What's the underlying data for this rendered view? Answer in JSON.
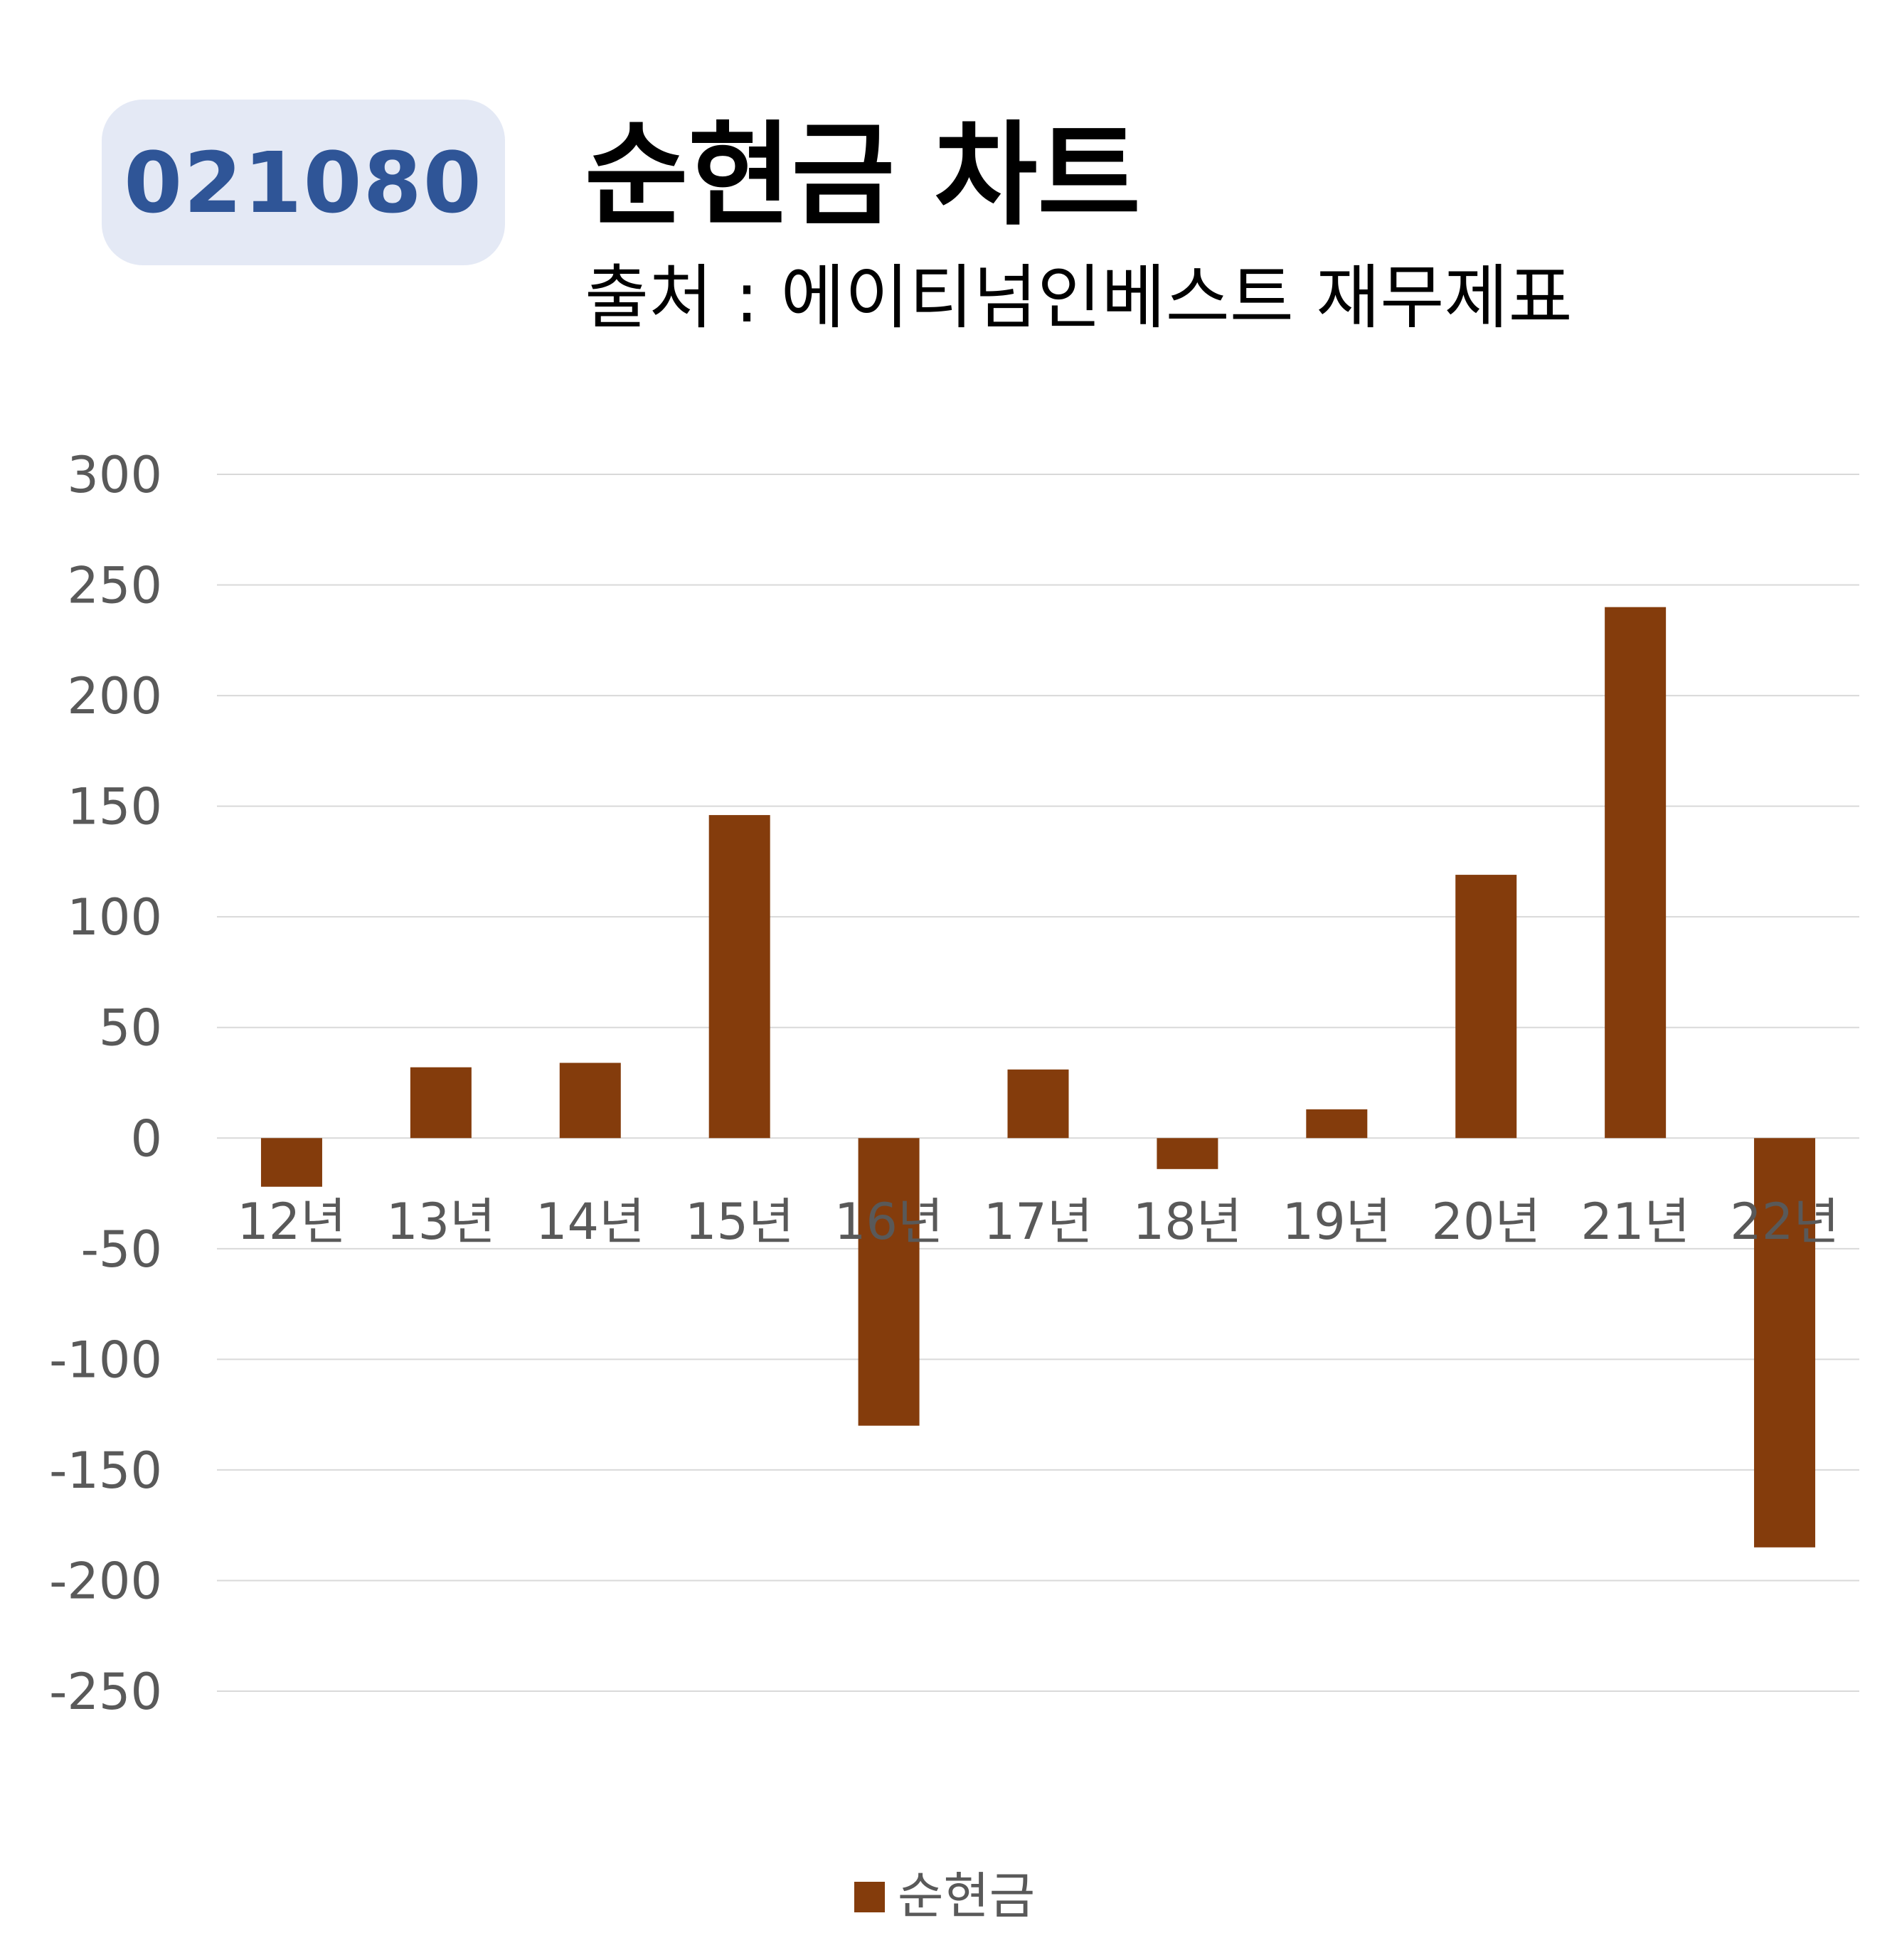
{
  "badge": {
    "code": "021080"
  },
  "header": {
    "title": "순현금 차트",
    "subtitle": "출처 : 에이티넘인베스트 재무제표"
  },
  "colors": {
    "bar": "#843c0c",
    "badge_bg": "#e4e9f5",
    "badge_text": "#2f5597",
    "grid": "#d9d9d9",
    "tick_text": "#595959"
  },
  "chart_data": {
    "type": "bar",
    "title": "순현금 차트",
    "categories": [
      "12년",
      "13년",
      "14년",
      "15년",
      "16년",
      "17년",
      "18년",
      "19년",
      "20년",
      "21년",
      "22년"
    ],
    "series": [
      {
        "name": "순현금",
        "values": [
          -22,
          32,
          34,
          146,
          -130,
          31,
          -14,
          13,
          119,
          240,
          -185
        ]
      }
    ],
    "ylim": [
      -250,
      300
    ],
    "yticks": [
      300,
      250,
      200,
      150,
      100,
      50,
      0,
      -50,
      -100,
      -150,
      -200,
      -250
    ],
    "xlabel": "",
    "ylabel": "",
    "grid": true,
    "legend": "bottom"
  }
}
